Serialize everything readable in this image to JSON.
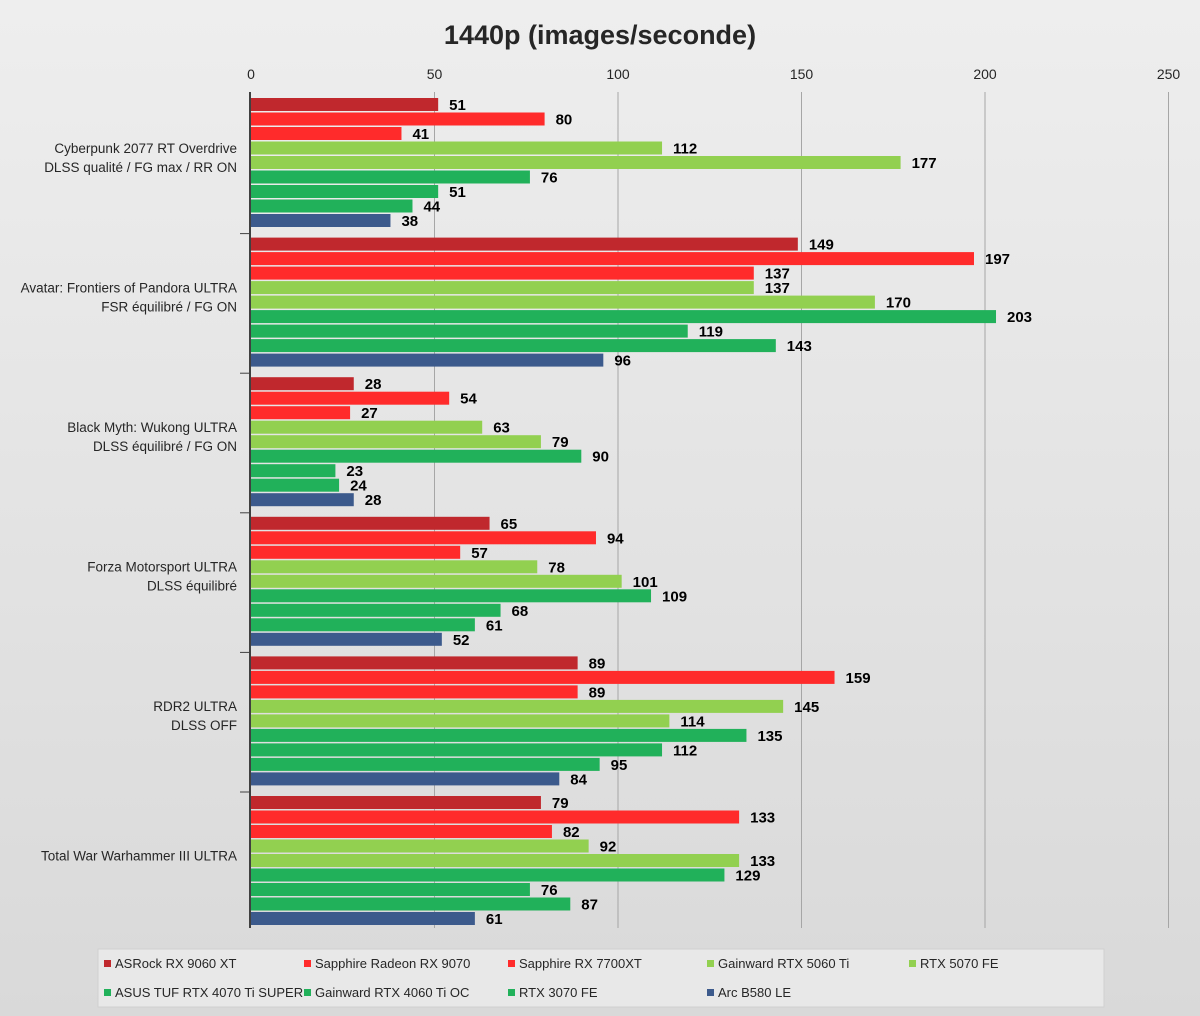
{
  "chart_data": {
    "type": "bar",
    "orientation": "horizontal",
    "title": "1440p (images/seconde)",
    "xlim": [
      0,
      250
    ],
    "x_ticks": [
      "0",
      "50",
      "100",
      "150",
      "200",
      "250"
    ],
    "grid": true,
    "legend_position": "bottom",
    "categories": [
      [
        "Cyberpunk 2077 RT Overdrive",
        "DLSS qualité / FG max / RR ON"
      ],
      [
        "Avatar: Frontiers of Pandora ULTRA",
        "FSR équilibré / FG ON"
      ],
      [
        "Black Myth: Wukong ULTRA",
        "DLSS équilibré / FG ON"
      ],
      [
        "Forza Motorsport ULTRA",
        "DLSS équilibré"
      ],
      [
        "RDR2 ULTRA",
        "DLSS OFF"
      ],
      [
        "Total War Warhammer III ULTRA"
      ]
    ],
    "series": [
      {
        "name": "ASRock RX 9060 XT",
        "color": "#c0282d",
        "values": [
          51,
          149,
          28,
          65,
          89,
          79
        ]
      },
      {
        "name": "Sapphire Radeon RX 9070",
        "color": "#ff2b2b",
        "values": [
          80,
          197,
          54,
          94,
          159,
          133
        ]
      },
      {
        "name": "Sapphire RX 7700XT",
        "color": "#ff2b2b",
        "values": [
          41,
          137,
          27,
          57,
          89,
          82
        ]
      },
      {
        "name": "Gainward RTX 5060 Ti",
        "color": "#92d050",
        "values": [
          112,
          137,
          63,
          78,
          145,
          92
        ]
      },
      {
        "name": "RTX 5070 FE",
        "color": "#92d050",
        "values": [
          177,
          170,
          79,
          101,
          114,
          133
        ]
      },
      {
        "name": "ASUS TUF RTX 4070 Ti SUPER",
        "color": "#21b15a",
        "values": [
          76,
          203,
          90,
          109,
          135,
          129
        ]
      },
      {
        "name": "Gainward RTX 4060 Ti OC",
        "color": "#21b15a",
        "values": [
          51,
          119,
          23,
          68,
          112,
          76
        ]
      },
      {
        "name": "RTX 3070 FE",
        "color": "#21b15a",
        "values": [
          44,
          143,
          24,
          61,
          95,
          87
        ]
      },
      {
        "name": "Arc B580 LE",
        "color": "#3c5a8c",
        "values": [
          38,
          96,
          28,
          52,
          84,
          61
        ]
      }
    ]
  }
}
